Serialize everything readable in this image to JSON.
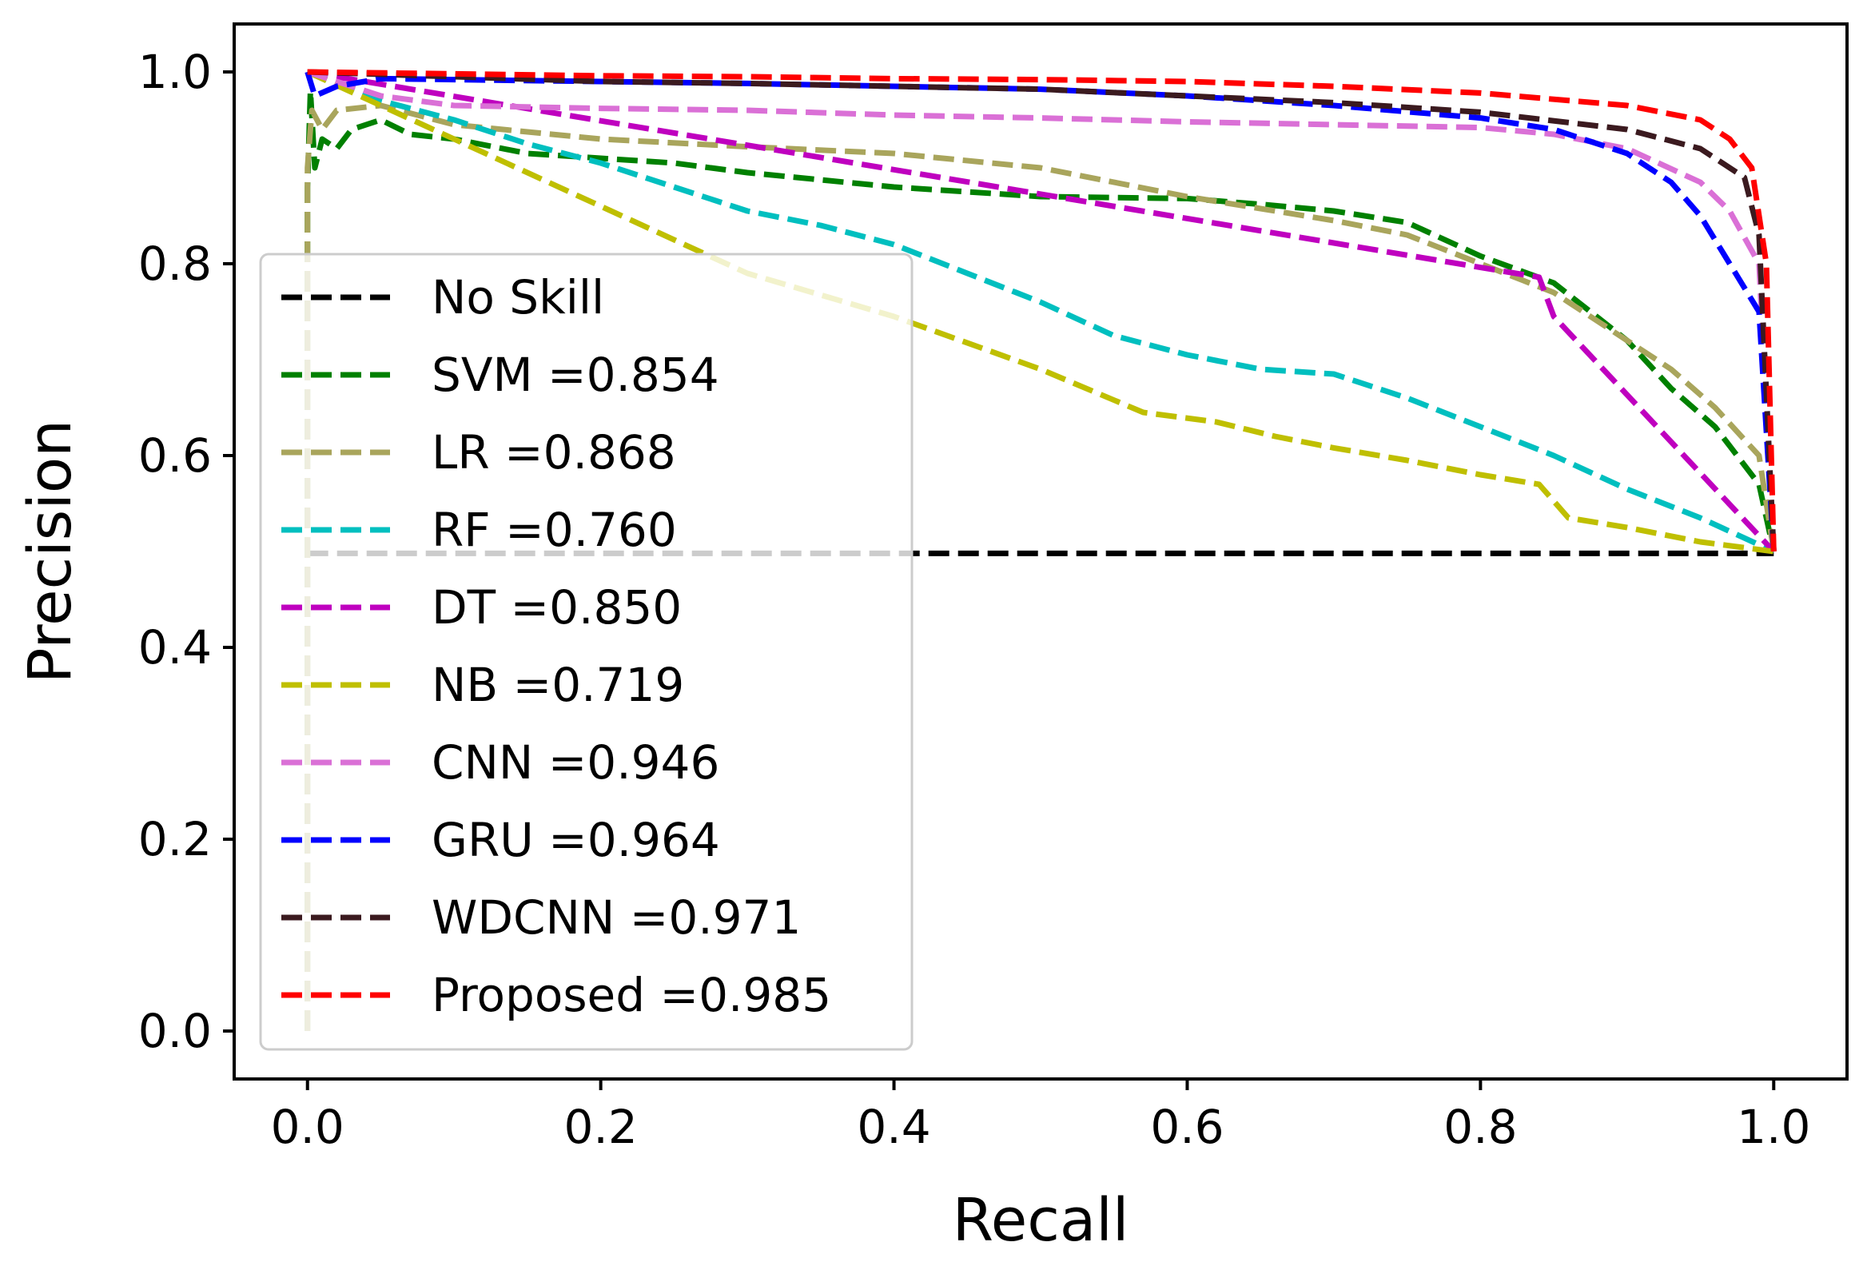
{
  "chart_data": {
    "type": "line",
    "xlabel": "Recall",
    "ylabel": "Precision",
    "xlim": [
      -0.05,
      1.05
    ],
    "ylim": [
      -0.05,
      1.05
    ],
    "xticks": [
      0.0,
      0.2,
      0.4,
      0.6,
      0.8,
      1.0
    ],
    "yticks": [
      0.0,
      0.2,
      0.4,
      0.6,
      0.8,
      1.0
    ],
    "xtick_labels": [
      "0.0",
      "0.2",
      "0.4",
      "0.6",
      "0.8",
      "1.0"
    ],
    "ytick_labels": [
      "0.0",
      "0.2",
      "0.4",
      "0.6",
      "0.8",
      "1.0"
    ],
    "grid": false,
    "legend_position": "center-left",
    "series": [
      {
        "name": "No Skill",
        "legend_label": "No Skill",
        "color": "#000000",
        "points": [
          [
            0.0,
            0.498
          ],
          [
            1.0,
            0.498
          ]
        ]
      },
      {
        "name": "SVM",
        "legend_label": "SVM =0.854",
        "color": "#008000",
        "points": [
          [
            0.0,
            0.0
          ],
          [
            0.0,
            0.88
          ],
          [
            0.002,
            0.98
          ],
          [
            0.005,
            0.9
          ],
          [
            0.01,
            0.93
          ],
          [
            0.02,
            0.92
          ],
          [
            0.03,
            0.94
          ],
          [
            0.05,
            0.95
          ],
          [
            0.07,
            0.935
          ],
          [
            0.1,
            0.93
          ],
          [
            0.15,
            0.915
          ],
          [
            0.2,
            0.91
          ],
          [
            0.25,
            0.905
          ],
          [
            0.3,
            0.895
          ],
          [
            0.4,
            0.88
          ],
          [
            0.5,
            0.87
          ],
          [
            0.6,
            0.868
          ],
          [
            0.65,
            0.862
          ],
          [
            0.7,
            0.855
          ],
          [
            0.75,
            0.843
          ],
          [
            0.8,
            0.808
          ],
          [
            0.85,
            0.78
          ],
          [
            0.9,
            0.72
          ],
          [
            0.93,
            0.67
          ],
          [
            0.96,
            0.63
          ],
          [
            0.99,
            0.57
          ],
          [
            1.0,
            0.5
          ]
        ]
      },
      {
        "name": "LR",
        "legend_label": "LR =0.868",
        "color": "#a9a55c",
        "points": [
          [
            0.0,
            0.0
          ],
          [
            0.0,
            0.9
          ],
          [
            0.003,
            0.96
          ],
          [
            0.01,
            0.94
          ],
          [
            0.02,
            0.96
          ],
          [
            0.05,
            0.965
          ],
          [
            0.1,
            0.945
          ],
          [
            0.2,
            0.93
          ],
          [
            0.3,
            0.922
          ],
          [
            0.4,
            0.915
          ],
          [
            0.5,
            0.9
          ],
          [
            0.6,
            0.87
          ],
          [
            0.7,
            0.845
          ],
          [
            0.75,
            0.83
          ],
          [
            0.8,
            0.8
          ],
          [
            0.85,
            0.77
          ],
          [
            0.9,
            0.72
          ],
          [
            0.93,
            0.69
          ],
          [
            0.96,
            0.65
          ],
          [
            0.99,
            0.6
          ],
          [
            1.0,
            0.5
          ]
        ]
      },
      {
        "name": "RF",
        "legend_label": "RF =0.760",
        "color": "#00bfbf",
        "points": [
          [
            0.0,
            1.0
          ],
          [
            0.05,
            0.97
          ],
          [
            0.1,
            0.95
          ],
          [
            0.15,
            0.925
          ],
          [
            0.2,
            0.905
          ],
          [
            0.25,
            0.88
          ],
          [
            0.3,
            0.855
          ],
          [
            0.35,
            0.84
          ],
          [
            0.4,
            0.82
          ],
          [
            0.45,
            0.79
          ],
          [
            0.5,
            0.76
          ],
          [
            0.55,
            0.725
          ],
          [
            0.6,
            0.705
          ],
          [
            0.65,
            0.69
          ],
          [
            0.7,
            0.685
          ],
          [
            0.75,
            0.66
          ],
          [
            0.8,
            0.63
          ],
          [
            0.85,
            0.6
          ],
          [
            0.9,
            0.565
          ],
          [
            0.95,
            0.535
          ],
          [
            1.0,
            0.5
          ]
        ]
      },
      {
        "name": "DT",
        "legend_label": "DT =0.850",
        "color": "#bf00bf",
        "points": [
          [
            0.0,
            1.0
          ],
          [
            0.84,
            0.786
          ],
          [
            0.85,
            0.745
          ],
          [
            1.0,
            0.5
          ]
        ]
      },
      {
        "name": "NB",
        "legend_label": "NB =0.719",
        "color": "#bfbf00",
        "points": [
          [
            0.0,
            1.0
          ],
          [
            0.1,
            0.93
          ],
          [
            0.2,
            0.86
          ],
          [
            0.3,
            0.79
          ],
          [
            0.4,
            0.745
          ],
          [
            0.5,
            0.69
          ],
          [
            0.57,
            0.645
          ],
          [
            0.62,
            0.635
          ],
          [
            0.66,
            0.62
          ],
          [
            0.7,
            0.608
          ],
          [
            0.75,
            0.595
          ],
          [
            0.8,
            0.58
          ],
          [
            0.84,
            0.57
          ],
          [
            0.86,
            0.535
          ],
          [
            0.9,
            0.525
          ],
          [
            0.95,
            0.51
          ],
          [
            1.0,
            0.5
          ]
        ]
      },
      {
        "name": "CNN",
        "legend_label": "CNN =0.946",
        "color": "#da70d6",
        "points": [
          [
            0.0,
            1.0
          ],
          [
            0.05,
            0.975
          ],
          [
            0.1,
            0.965
          ],
          [
            0.2,
            0.962
          ],
          [
            0.3,
            0.96
          ],
          [
            0.4,
            0.955
          ],
          [
            0.5,
            0.952
          ],
          [
            0.6,
            0.948
          ],
          [
            0.7,
            0.945
          ],
          [
            0.8,
            0.942
          ],
          [
            0.85,
            0.935
          ],
          [
            0.9,
            0.92
          ],
          [
            0.95,
            0.885
          ],
          [
            0.97,
            0.855
          ],
          [
            0.99,
            0.8
          ],
          [
            1.0,
            0.5
          ]
        ]
      },
      {
        "name": "GRU",
        "legend_label": "GRU =0.964",
        "color": "#0000ff",
        "points": [
          [
            0.0,
            1.0
          ],
          [
            0.005,
            0.975
          ],
          [
            0.02,
            0.985
          ],
          [
            0.05,
            0.993
          ],
          [
            0.1,
            0.992
          ],
          [
            0.2,
            0.99
          ],
          [
            0.3,
            0.988
          ],
          [
            0.4,
            0.985
          ],
          [
            0.5,
            0.982
          ],
          [
            0.6,
            0.975
          ],
          [
            0.7,
            0.965
          ],
          [
            0.8,
            0.952
          ],
          [
            0.85,
            0.94
          ],
          [
            0.9,
            0.915
          ],
          [
            0.93,
            0.885
          ],
          [
            0.95,
            0.85
          ],
          [
            0.97,
            0.8
          ],
          [
            0.99,
            0.75
          ],
          [
            1.0,
            0.5
          ]
        ]
      },
      {
        "name": "WDCNN",
        "legend_label": "WDCNN =0.971",
        "color": "#3b1a1f",
        "points": [
          [
            0.0,
            1.0
          ],
          [
            0.1,
            0.995
          ],
          [
            0.2,
            0.99
          ],
          [
            0.3,
            0.988
          ],
          [
            0.4,
            0.985
          ],
          [
            0.5,
            0.982
          ],
          [
            0.6,
            0.975
          ],
          [
            0.7,
            0.968
          ],
          [
            0.8,
            0.958
          ],
          [
            0.9,
            0.94
          ],
          [
            0.95,
            0.92
          ],
          [
            0.98,
            0.89
          ],
          [
            0.99,
            0.83
          ],
          [
            1.0,
            0.5
          ]
        ]
      },
      {
        "name": "Proposed",
        "legend_label": "Proposed =0.985",
        "color": "#ff0000",
        "points": [
          [
            0.0,
            1.0
          ],
          [
            0.1,
            0.998
          ],
          [
            0.2,
            0.996
          ],
          [
            0.3,
            0.995
          ],
          [
            0.4,
            0.993
          ],
          [
            0.5,
            0.992
          ],
          [
            0.6,
            0.99
          ],
          [
            0.7,
            0.985
          ],
          [
            0.8,
            0.978
          ],
          [
            0.9,
            0.965
          ],
          [
            0.95,
            0.95
          ],
          [
            0.97,
            0.93
          ],
          [
            0.985,
            0.9
          ],
          [
            0.995,
            0.8
          ],
          [
            1.0,
            0.5
          ]
        ]
      }
    ]
  },
  "colors": {
    "legend_frame": "#cccccc",
    "axes": "#000000",
    "background": "#ffffff"
  }
}
